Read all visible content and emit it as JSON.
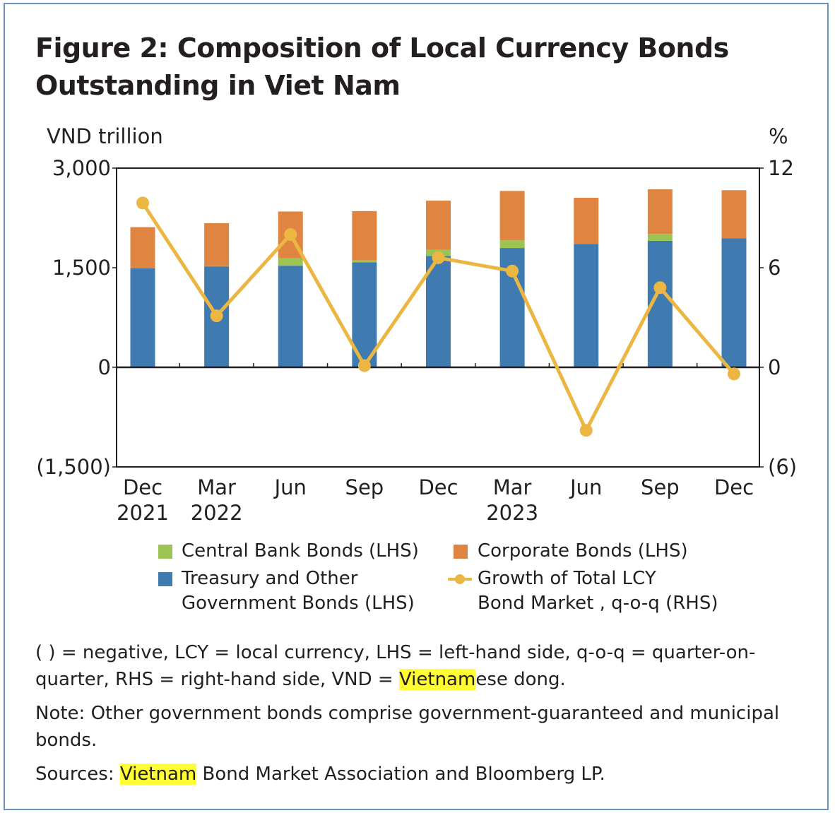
{
  "title": "Figure 2: Composition of Local Currency Bonds Outstanding in Viet Nam",
  "chart_data": {
    "type": "bar",
    "stacked": true,
    "title": "Figure 2: Composition of Local Currency Bonds Outstanding in Viet Nam",
    "ylabel_left": "VND trillion",
    "ylabel_right": "%",
    "ylim_left": [
      -1500,
      3000
    ],
    "ylim_right": [
      -6,
      12
    ],
    "yticks_left": [
      "(1,500)",
      "0",
      "1,500",
      "3,000"
    ],
    "yticks_right": [
      "(6)",
      "0",
      "6",
      "12"
    ],
    "categories": [
      [
        "Dec",
        "2021"
      ],
      [
        "Mar",
        "2022"
      ],
      [
        "Jun",
        ""
      ],
      [
        "Sep",
        ""
      ],
      [
        "Dec",
        ""
      ],
      [
        "Mar",
        "2023"
      ],
      [
        "Jun",
        ""
      ],
      [
        "Sep",
        ""
      ],
      [
        "Dec",
        ""
      ]
    ],
    "grid": false,
    "legend_position": "bottom",
    "series": [
      {
        "name": "Treasury and Other Government Bonds (LHS)",
        "type": "bar",
        "axis": "left",
        "color": "#3f7ab0",
        "values": [
          1492,
          1520,
          1530,
          1581,
          1677,
          1797,
          1858,
          1904,
          1944
        ]
      },
      {
        "name": "Central Bank Bonds (LHS)",
        "type": "bar",
        "axis": "left",
        "color": "#9bc453",
        "values": [
          0,
          5,
          111,
          29,
          93,
          115,
          0,
          104,
          0
        ]
      },
      {
        "name": "Corporate Bonds (LHS)",
        "type": "bar",
        "axis": "left",
        "color": "#e08442",
        "values": [
          619,
          646,
          705,
          743,
          740,
          744,
          695,
          673,
          723
        ]
      },
      {
        "name": "Growth of Total LCY Bond Market , q-o-q (RHS)",
        "type": "line",
        "axis": "right",
        "color": "#ebb642",
        "values": [
          9.9,
          3.1,
          8.0,
          0.1,
          6.6,
          5.8,
          -3.8,
          4.8,
          -0.4
        ]
      }
    ]
  },
  "legend": {
    "cb": "Central Bank Bonds (LHS)",
    "corp": "Corporate Bonds (LHS)",
    "tr1": "Treasury and Other",
    "tr2": "Government Bonds (LHS)",
    "gr1": "Growth of Total LCY",
    "gr2": "Bond Market , q-o-q (RHS)"
  },
  "notes": {
    "abbr_a": "( ) = negative, LCY = local currency, LHS = left-hand side, q-o-q = quarter-on-quarter, RHS = right-hand side, VND = ",
    "abbr_hl": "Vietnam",
    "abbr_b": "ese dong.",
    "note": "Note: Other government bonds comprise government-guaranteed and municipal bonds.",
    "src_a": "Sources: ",
    "src_hl": "Vietnam",
    "src_b": " Bond Market Association and Bloomberg LP."
  }
}
